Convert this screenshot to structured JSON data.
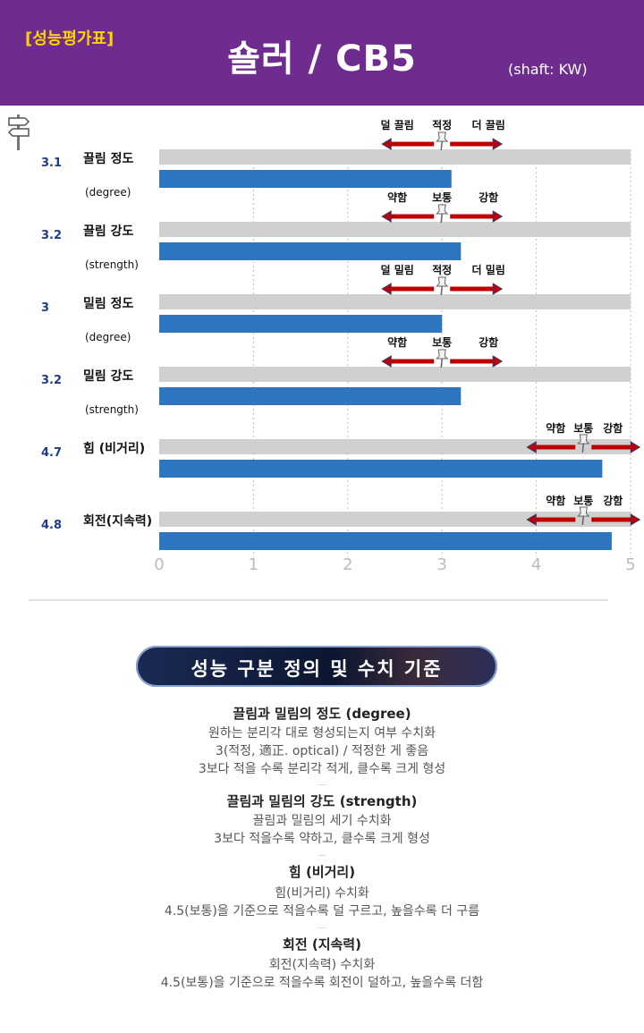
{
  "header": {
    "tag": "[성능평가표]",
    "title": "숄러 / CB5",
    "shaft": "(shaft: KW)",
    "bg_color": "#6f2c8f",
    "tag_color": "#ffd400"
  },
  "chart_data": {
    "type": "bar",
    "orientation": "horizontal",
    "xlim": [
      0,
      5
    ],
    "x_ticks": [
      "0",
      "1",
      "2",
      "3",
      "4",
      "5"
    ],
    "grid": true,
    "bar_color": "#2e75c0",
    "track_color": "#d0d0d0",
    "categories": [
      {
        "label": "끌림 정도",
        "sublabel": "(degree)",
        "value": 3.1,
        "value_label": "3.1",
        "scale": {
          "left": "덜 끌림",
          "mid": "적정",
          "right": "더 끌림",
          "center": 3
        }
      },
      {
        "label": "끌림 강도",
        "sublabel": "(strength)",
        "value": 3.2,
        "value_label": "3.2",
        "scale": {
          "left": "약함",
          "mid": "보통",
          "right": "강함",
          "center": 3
        }
      },
      {
        "label": "밀림 정도",
        "sublabel": "(degree)",
        "value": 3.0,
        "value_label": "3",
        "scale": {
          "left": "덜 밀림",
          "mid": "적정",
          "right": "더 밀림",
          "center": 3
        }
      },
      {
        "label": "밀림 강도",
        "sublabel": "(strength)",
        "value": 3.2,
        "value_label": "3.2",
        "scale": {
          "left": "약함",
          "mid": "보통",
          "right": "강함",
          "center": 3
        }
      },
      {
        "label": "힘 (비거리)",
        "sublabel": "",
        "value": 4.7,
        "value_label": "4.7",
        "scale": {
          "left": "약함",
          "mid": "보통",
          "right": "강함",
          "center": 4.5
        }
      },
      {
        "label": "회전(지속력)",
        "sublabel": "",
        "value": 4.8,
        "value_label": "4.8",
        "scale": {
          "left": "약함",
          "mid": "보통",
          "right": "강함",
          "center": 4.5
        }
      }
    ]
  },
  "definitions": {
    "banner": "성능 구분 정의 및 수치 기준",
    "sections": [
      {
        "title": "끌림과 밀림의 정도 (degree)",
        "lines": [
          "원하는 분리각 대로 형성되는지 여부 수치화",
          "3(적정, 適正. optical) / 적정한 게 좋음",
          "3보다 적을 수록 분리각 적게, 클수록 크게 형성"
        ]
      },
      {
        "title": "끌림과 밀림의 강도 (strength)",
        "lines": [
          "끌림과 밀림의 세기 수치화",
          "3보다 적을수록 약하고, 클수록 크게 형성"
        ]
      },
      {
        "title": "힘 (비거리)",
        "lines": [
          "힘(비거리) 수치화",
          "4.5(보통)을 기준으로 적을수록 덜 구르고, 높을수록 더 구름"
        ]
      },
      {
        "title": "회전 (지속력)",
        "lines": [
          "회전(지속력) 수치화",
          "4.5(보통)을 기준으로 적을수록 회전이 덜하고, 높을수록 더함"
        ]
      }
    ],
    "dash": "—"
  }
}
